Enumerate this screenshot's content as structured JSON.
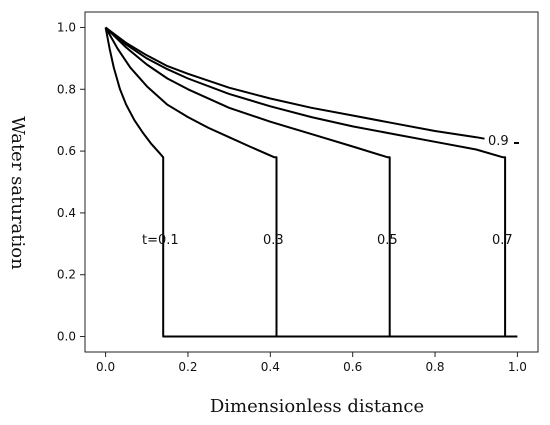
{
  "chart_data": {
    "type": "line",
    "title": "",
    "xlabel": "Dimensionless distance",
    "ylabel": "Water saturation",
    "xlim": [
      -0.05,
      1.05
    ],
    "ylim": [
      -0.05,
      1.05
    ],
    "xticks": [
      0.0,
      0.2,
      0.4,
      0.6,
      0.8,
      1.0
    ],
    "xtick_labels": [
      "0.0",
      "0.2",
      "0.4",
      "0.6",
      "0.8",
      "1.0"
    ],
    "yticks": [
      0.0,
      0.2,
      0.4,
      0.6,
      0.8,
      1.0
    ],
    "ytick_labels": [
      "0.0",
      "0.2",
      "0.4",
      "0.6",
      "0.8",
      "1.0"
    ],
    "grid": false,
    "series": [
      {
        "label": "t=0.1",
        "x": [
          0.0,
          0.01,
          0.02,
          0.035,
          0.05,
          0.07,
          0.09,
          0.11,
          0.13,
          0.14,
          0.14,
          0.14,
          1.0
        ],
        "y": [
          1.0,
          0.93,
          0.87,
          0.8,
          0.75,
          0.7,
          0.66,
          0.625,
          0.595,
          0.58,
          0.58,
          0.0,
          0.0
        ]
      },
      {
        "label": "0.3",
        "x": [
          0.0,
          0.03,
          0.06,
          0.1,
          0.15,
          0.2,
          0.25,
          0.3,
          0.35,
          0.41,
          0.415,
          0.415
        ],
        "y": [
          1.0,
          0.93,
          0.87,
          0.81,
          0.75,
          0.71,
          0.675,
          0.645,
          0.615,
          0.58,
          0.58,
          0.0
        ]
      },
      {
        "label": "0.5",
        "x": [
          0.0,
          0.05,
          0.1,
          0.15,
          0.2,
          0.3,
          0.4,
          0.5,
          0.6,
          0.685,
          0.69,
          0.69
        ],
        "y": [
          1.0,
          0.935,
          0.88,
          0.835,
          0.8,
          0.74,
          0.695,
          0.655,
          0.615,
          0.58,
          0.58,
          0.0
        ]
      },
      {
        "label": "0.7",
        "x": [
          0.0,
          0.05,
          0.1,
          0.15,
          0.2,
          0.3,
          0.4,
          0.5,
          0.6,
          0.7,
          0.8,
          0.9,
          0.965,
          0.97,
          0.97
        ],
        "y": [
          1.0,
          0.945,
          0.9,
          0.865,
          0.835,
          0.785,
          0.745,
          0.71,
          0.68,
          0.655,
          0.63,
          0.605,
          0.58,
          0.58,
          0.0
        ]
      },
      {
        "label": "0.9",
        "x": [
          0.0,
          0.05,
          0.1,
          0.15,
          0.2,
          0.3,
          0.4,
          0.5,
          0.6,
          0.7,
          0.8,
          0.9,
          0.92
        ],
        "y": [
          1.0,
          0.95,
          0.91,
          0.875,
          0.85,
          0.805,
          0.77,
          0.74,
          0.715,
          0.69,
          0.665,
          0.645,
          0.64
        ]
      }
    ]
  }
}
